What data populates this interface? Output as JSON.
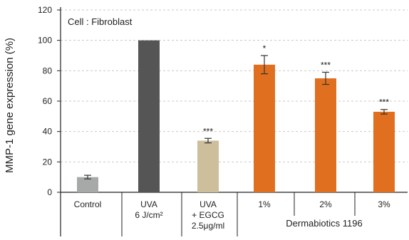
{
  "chart_data": {
    "type": "bar",
    "title": "",
    "annotation": "Cell : Fibroblast",
    "ylabel": "MMP-1 gene expression (%)",
    "xlabel": "",
    "ylim": [
      0,
      120
    ],
    "yticks": [
      0,
      20,
      40,
      60,
      80,
      100,
      120
    ],
    "grid": true,
    "categories": [
      [
        "Control"
      ],
      [
        "UVA",
        "6 J/cm²"
      ],
      [
        "UVA",
        "+ EGCG",
        "2.5μg/ml"
      ],
      [
        "1%"
      ],
      [
        "2%"
      ],
      [
        "3%"
      ]
    ],
    "group_label": "Dermabiotics 1196",
    "values": [
      10,
      100,
      34,
      84,
      75,
      53
    ],
    "errors": [
      1.2,
      0,
      1.5,
      6,
      4,
      1.5
    ],
    "significance": [
      "",
      "",
      "***",
      "*",
      "***",
      "***"
    ],
    "colors": [
      "#a7a9a8",
      "#555555",
      "#cdbf9c",
      "#e0701f",
      "#e0701f",
      "#e0701f"
    ]
  }
}
